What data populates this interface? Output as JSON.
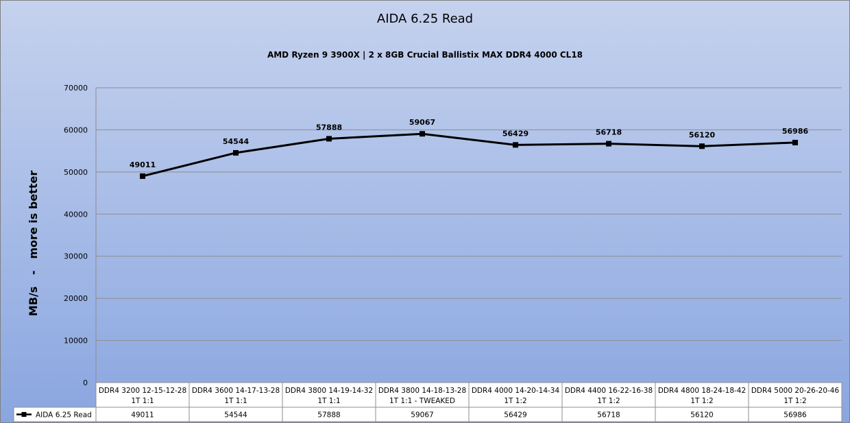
{
  "chart_data": {
    "type": "line",
    "title": "AIDA 6.25 Read",
    "subtitle": "AMD Ryzen 9 3900X | 2 x 8GB Crucial Ballistix MAX DDR4 4000 CL18",
    "ylabel": "MB/s   -   more is better",
    "xlabel": "",
    "ylim": [
      0,
      70000
    ],
    "yticks": [
      0,
      10000,
      20000,
      30000,
      40000,
      50000,
      60000,
      70000
    ],
    "grid": true,
    "legend_position": "data-table-left",
    "categories": [
      [
        "DDR4 3200 12-15-12-28",
        "1T 1:1"
      ],
      [
        "DDR4 3600 14-17-13-28",
        "1T 1:1"
      ],
      [
        "DDR4 3800 14-19-14-32",
        "1T 1:1"
      ],
      [
        "DDR4 3800 14-18-13-28",
        "1T 1:1 - TWEAKED"
      ],
      [
        "DDR4 4000 14-20-14-34",
        "1T 1:2"
      ],
      [
        "DDR4 4400 16-22-16-38",
        "1T 1:2"
      ],
      [
        "DDR4 4800 18-24-18-42",
        "1T 1:2"
      ],
      [
        "DDR4 5000 20-26-20-46",
        "1T 1:2"
      ]
    ],
    "series": [
      {
        "name": "AIDA 6.25 Read",
        "values": [
          49011,
          54544,
          57888,
          59067,
          56429,
          56718,
          56120,
          56986
        ],
        "color": "#000000",
        "marker": "square"
      }
    ],
    "colors": {
      "background_top": "#c5d2ee",
      "background_bottom": "#8aa6e0",
      "gridline": "#8d8d8d",
      "table": "#ffffff"
    }
  }
}
